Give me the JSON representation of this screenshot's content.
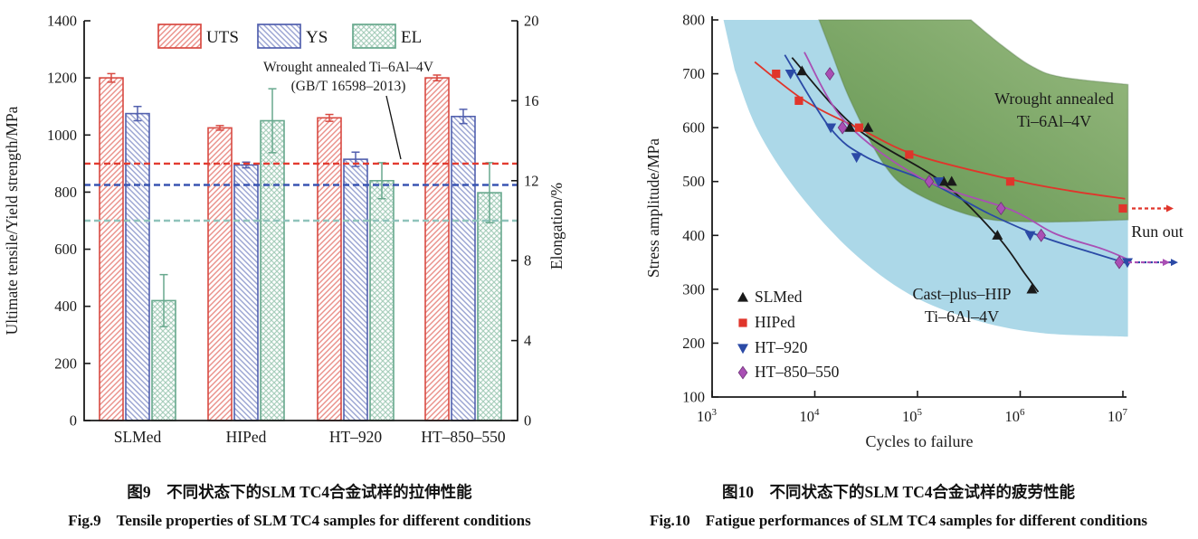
{
  "chart_data": [
    {
      "type": "bar",
      "title_cn": "图9　不同状态下的SLM TC4合金试样的拉伸性能",
      "title_en": "Fig.9　Tensile properties of SLM TC4 samples for different conditions",
      "categories": [
        "SLMed",
        "HIPed",
        "HT–920",
        "HT–850–550"
      ],
      "series": [
        {
          "name": "UTS",
          "axis": "left",
          "color": "#d84a42",
          "hatch": "fwd",
          "values": [
            1200,
            1025,
            1060,
            1200
          ],
          "errors": [
            15,
            8,
            12,
            10
          ]
        },
        {
          "name": "YS",
          "axis": "left",
          "color": "#5260ae",
          "hatch": "bwd",
          "values": [
            1075,
            895,
            915,
            1065
          ],
          "errors": [
            25,
            10,
            25,
            25
          ]
        },
        {
          "name": "EL",
          "axis": "right",
          "color": "#68a98e",
          "hatch": "cross",
          "values": [
            6.0,
            15.0,
            12.0,
            11.4
          ],
          "errors": [
            1.3,
            1.6,
            0.9,
            1.5
          ]
        }
      ],
      "ylabel_left": "Ultimate tensile/Yield strength/MPa",
      "ylabel_right": "Elongation/%",
      "ylim_left": [
        0,
        1400
      ],
      "ytick_step_left": 200,
      "ylim_right": [
        0,
        20
      ],
      "ytick_step_right": 4,
      "grid": false,
      "legend_position": "top-inside",
      "ref_lines": [
        {
          "name": "UTS-reference",
          "axis": "left",
          "value": 900,
          "color": "#e23b30"
        },
        {
          "name": "YS-reference",
          "axis": "left",
          "value": 825,
          "color": "#3a55b2"
        },
        {
          "name": "EL-reference",
          "axis": "right",
          "value": 10,
          "color": "#8fc3bb"
        }
      ],
      "annotation": {
        "line1": "Wrought annealed Ti–6Al–4V",
        "line2": "(GB/T 16598–2013)"
      }
    },
    {
      "type": "scatter",
      "title_cn": "图10　不同状态下的SLM TC4合金试样的疲劳性能",
      "title_en": "Fig.10　Fatigue performances of SLM TC4 samples for different conditions",
      "xlabel": "Cycles to failure",
      "ylabel": "Stress amplitude/MPa",
      "xscale": "log",
      "xlim": [
        1000,
        10000000
      ],
      "ylim": [
        100,
        800
      ],
      "ytick_step": 100,
      "grid": false,
      "legend_position": "bottom-left-inside",
      "runout_label": "Run out",
      "series": [
        {
          "name": "SLMed",
          "marker": "triangle-up",
          "color": "#1a1a1a",
          "points": [
            [
              7500,
              705
            ],
            [
              22000,
              600
            ],
            [
              33000,
              600
            ],
            [
              180000,
              500
            ],
            [
              215000,
              500
            ],
            [
              600000,
              400
            ],
            [
              1300000,
              300
            ]
          ],
          "trend": [
            [
              6000,
              730
            ],
            [
              25000,
              600
            ],
            [
              170000,
              500
            ],
            [
              590000,
              400
            ],
            [
              1100000,
              330
            ],
            [
              1500000,
              295
            ]
          ]
        },
        {
          "name": "HIPed",
          "marker": "square",
          "color": "#e0352b",
          "points": [
            [
              4200,
              700
            ],
            [
              7000,
              650
            ],
            [
              27000,
              600
            ],
            [
              83000,
              550
            ],
            [
              800000,
              500
            ]
          ],
          "runout": [
            10000000,
            450
          ],
          "trend": [
            [
              2600,
              722
            ],
            [
              8000,
              650
            ],
            [
              28000,
              597
            ],
            [
              100000,
              548
            ],
            [
              900000,
              502
            ],
            [
              3000000,
              483
            ],
            [
              10500000,
              468
            ]
          ]
        },
        {
          "name": "HT–920",
          "marker": "triangle-down",
          "color": "#2b4aa6",
          "points": [
            [
              5800,
              700
            ],
            [
              14300,
              600
            ],
            [
              25500,
              545
            ],
            [
              160000,
              500
            ],
            [
              1250000,
              400
            ]
          ],
          "runout": [
            10000000,
            350
          ],
          "trend": [
            [
              5100,
              735
            ],
            [
              14000,
              600
            ],
            [
              32000,
              545
            ],
            [
              126000,
              500
            ],
            [
              500000,
              440
            ],
            [
              1600000,
              398
            ],
            [
              5000000,
              368
            ],
            [
              11000000,
              348
            ]
          ]
        },
        {
          "name": "HT–850–550",
          "marker": "diamond",
          "color": "#a94fb4",
          "points": [
            [
              14000,
              700
            ],
            [
              18600,
              600
            ],
            [
              130000,
              500
            ],
            [
              650000,
              450
            ],
            [
              1600000,
              400
            ]
          ],
          "runout": [
            10000000,
            350
          ],
          "trend": [
            [
              7900,
              740
            ],
            [
              20000,
              610
            ],
            [
              112000,
              505
            ],
            [
              800000,
              448
            ],
            [
              2200000,
              403
            ],
            [
              6300000,
              375
            ],
            [
              11000000,
              356
            ]
          ]
        }
      ],
      "regions": [
        {
          "name": "cast-plus-hip-band",
          "label1": "Cast–plus–HIP",
          "label2": "Ti–6Al–4V",
          "text_color": "#2b4eae",
          "fill": "#a8d6e7",
          "label_xy": [
            401,
            331
          ],
          "top": [
            [
              1290,
              800
            ],
            [
              331000,
              800
            ],
            [
              660000,
              753
            ],
            [
              1290000,
              714
            ],
            [
              2500000,
              694
            ],
            [
              11200000,
              680
            ]
          ],
          "bottom": [
            [
              11200000,
              212
            ],
            [
              1580000,
              219
            ],
            [
              347000,
              244
            ],
            [
              83000,
              291
            ],
            [
              22400,
              372
            ],
            [
              6600,
              484
            ],
            [
              2750,
              597
            ],
            [
              1660,
              707
            ]
          ]
        },
        {
          "name": "wrought-annealed-band",
          "label1": "Wrought annealed",
          "label2": "Ti–6Al–4V",
          "text_color": "#218a3c",
          "fill_from": "#5e9147",
          "fill_to": "#97b87b",
          "label_xy": [
            503,
            115
          ],
          "top": [
            [
              11000,
              800
            ],
            [
              331000,
              800
            ],
            [
              660000,
              753
            ],
            [
              1290000,
              714
            ],
            [
              2500000,
              694
            ],
            [
              11200000,
              680
            ]
          ],
          "bottom": [
            [
              11200000,
              429
            ],
            [
              1580000,
              425
            ],
            [
              380000,
              434
            ],
            [
              91000,
              481
            ],
            [
              46000,
              535
            ],
            [
              22400,
              649
            ],
            [
              14800,
              736
            ]
          ]
        }
      ]
    }
  ]
}
